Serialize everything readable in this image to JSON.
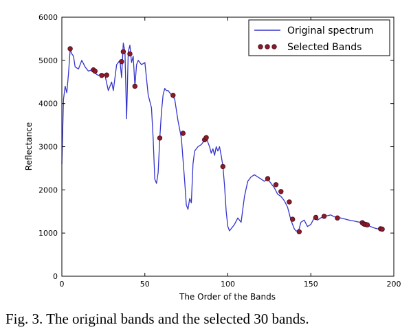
{
  "caption": "Fig. 3. The original bands and the selected 30 bands.",
  "chart_data": {
    "type": "line",
    "xlabel": "The Order of the Bands",
    "ylabel": "Reflectance",
    "xlim": [
      0,
      200
    ],
    "ylim": [
      0,
      6000
    ],
    "xticks": [
      0,
      50,
      100,
      150,
      200
    ],
    "yticks": [
      0,
      1000,
      2000,
      3000,
      4000,
      5000,
      6000
    ],
    "grid": false,
    "legend_position": "top-right",
    "colors": {
      "spectrum": "#3333cc",
      "selected_fill": "#8b1a2b",
      "selected_edge": "#4a0d18"
    },
    "series": [
      {
        "name": "Original spectrum",
        "kind": "line",
        "x": [
          0,
          1,
          2,
          3,
          4,
          5,
          6,
          7,
          8,
          10,
          12,
          14,
          16,
          18,
          20,
          22,
          24,
          26,
          28,
          30,
          31,
          32,
          33,
          35,
          36,
          37,
          38,
          39,
          40,
          41,
          42,
          43,
          44,
          45,
          46,
          48,
          50,
          52,
          54,
          55,
          56,
          57,
          58,
          59,
          60,
          61,
          62,
          63,
          64,
          65,
          66,
          68,
          70,
          72,
          74,
          75,
          76,
          77,
          78,
          79,
          80,
          82,
          84,
          86,
          87,
          88,
          89,
          90,
          91,
          92,
          93,
          94,
          95,
          96,
          97,
          98,
          99,
          100,
          101,
          102,
          104,
          106,
          108,
          110,
          112,
          114,
          116,
          118,
          120,
          122,
          124,
          126,
          128,
          130,
          132,
          134,
          136,
          137,
          138,
          139,
          140,
          141,
          142,
          143,
          144,
          146,
          148,
          150,
          152,
          154,
          156,
          158,
          160,
          162,
          164,
          166,
          168,
          170,
          172,
          174,
          176,
          178,
          180,
          182,
          184,
          186,
          188,
          190,
          192,
          194
        ],
        "y": [
          2600,
          4100,
          4400,
          4250,
          4700,
          5250,
          5150,
          5100,
          4850,
          4800,
          5000,
          4850,
          4750,
          4780,
          4700,
          4650,
          4700,
          4650,
          4300,
          4500,
          4300,
          4600,
          4900,
          5000,
          4600,
          5400,
          5200,
          3650,
          5200,
          5350,
          4950,
          5100,
          4400,
          4900,
          5000,
          4900,
          4950,
          4200,
          3900,
          3200,
          2250,
          2150,
          2400,
          3200,
          3800,
          4200,
          4350,
          4300,
          4300,
          4250,
          4200,
          4100,
          3600,
          3200,
          2200,
          1650,
          1550,
          1800,
          1700,
          2600,
          2900,
          3000,
          3050,
          3150,
          3250,
          3100,
          3000,
          2850,
          2950,
          2800,
          3000,
          2900,
          3000,
          2800,
          2550,
          2100,
          1500,
          1150,
          1050,
          1100,
          1200,
          1350,
          1250,
          1850,
          2200,
          2300,
          2350,
          2300,
          2250,
          2200,
          2250,
          2150,
          2050,
          1900,
          1850,
          1750,
          1600,
          1450,
          1300,
          1200,
          1100,
          1050,
          1050,
          1100,
          1250,
          1300,
          1150,
          1200,
          1350,
          1300,
          1350,
          1400,
          1400,
          1420,
          1380,
          1350,
          1350,
          1330,
          1310,
          1290,
          1280,
          1260,
          1250,
          1220,
          1180,
          1150,
          1120,
          1100,
          1080,
          1050
        ]
      },
      {
        "name": "Selected Bands",
        "kind": "scatter",
        "x": [
          5,
          19,
          20,
          24,
          27,
          36,
          37,
          41,
          44,
          59,
          67,
          73,
          86,
          87,
          97,
          124,
          129,
          132,
          137,
          139,
          143,
          153,
          158,
          166,
          181,
          182,
          183,
          184,
          192,
          193
        ],
        "y": [
          5270,
          4780,
          4750,
          4650,
          4660,
          4970,
          5200,
          5150,
          4400,
          3200,
          4190,
          3310,
          3160,
          3210,
          2540,
          2260,
          2120,
          1960,
          1720,
          1320,
          1030,
          1360,
          1390,
          1350,
          1240,
          1210,
          1200,
          1190,
          1100,
          1090
        ]
      }
    ]
  }
}
